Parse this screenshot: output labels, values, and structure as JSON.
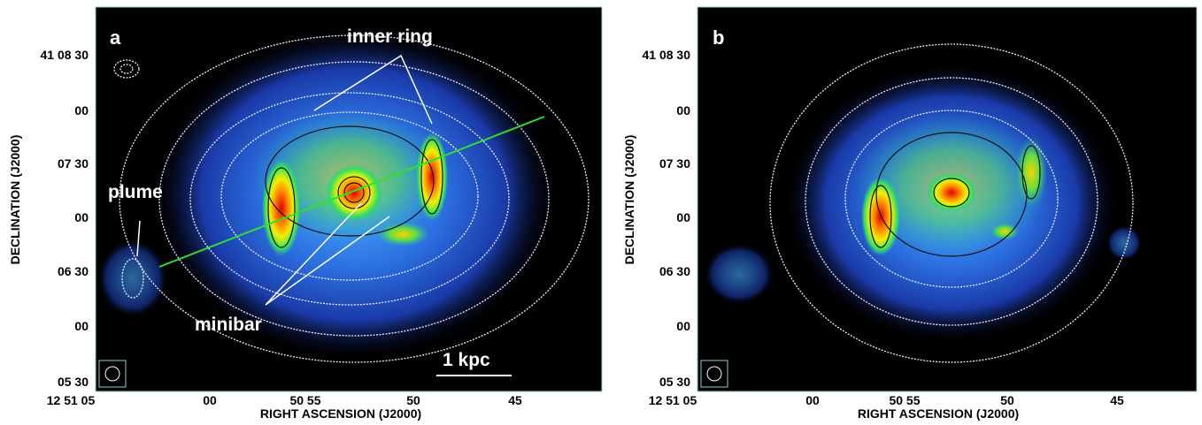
{
  "panels": [
    {
      "label": "a",
      "x_axis_label": "RIGHT ASCENSION (J2000)",
      "y_axis_label": "DECLINATION (J2000)",
      "x_ticks": [
        "12 51 05",
        "00",
        "50 55",
        "50",
        "45"
      ],
      "y_ticks": [
        "41 08 30",
        "00",
        "07 30",
        "00",
        "06 30",
        "00",
        "05 30"
      ],
      "annotations": {
        "inner_ring": "inner ring",
        "plume": "plume",
        "minibar": "minibar",
        "scale_bar": "1 kpc"
      }
    },
    {
      "label": "b",
      "x_axis_label": "RIGHT ASCENSION (J2000)",
      "y_axis_label": "DECLINATION (J2000)",
      "x_ticks": [
        "12 51 05",
        "00",
        "50 55",
        "50",
        "45"
      ],
      "y_ticks": [
        "41 08 30",
        "00",
        "07 30",
        "00",
        "06 30",
        "00",
        "05 30"
      ]
    }
  ]
}
